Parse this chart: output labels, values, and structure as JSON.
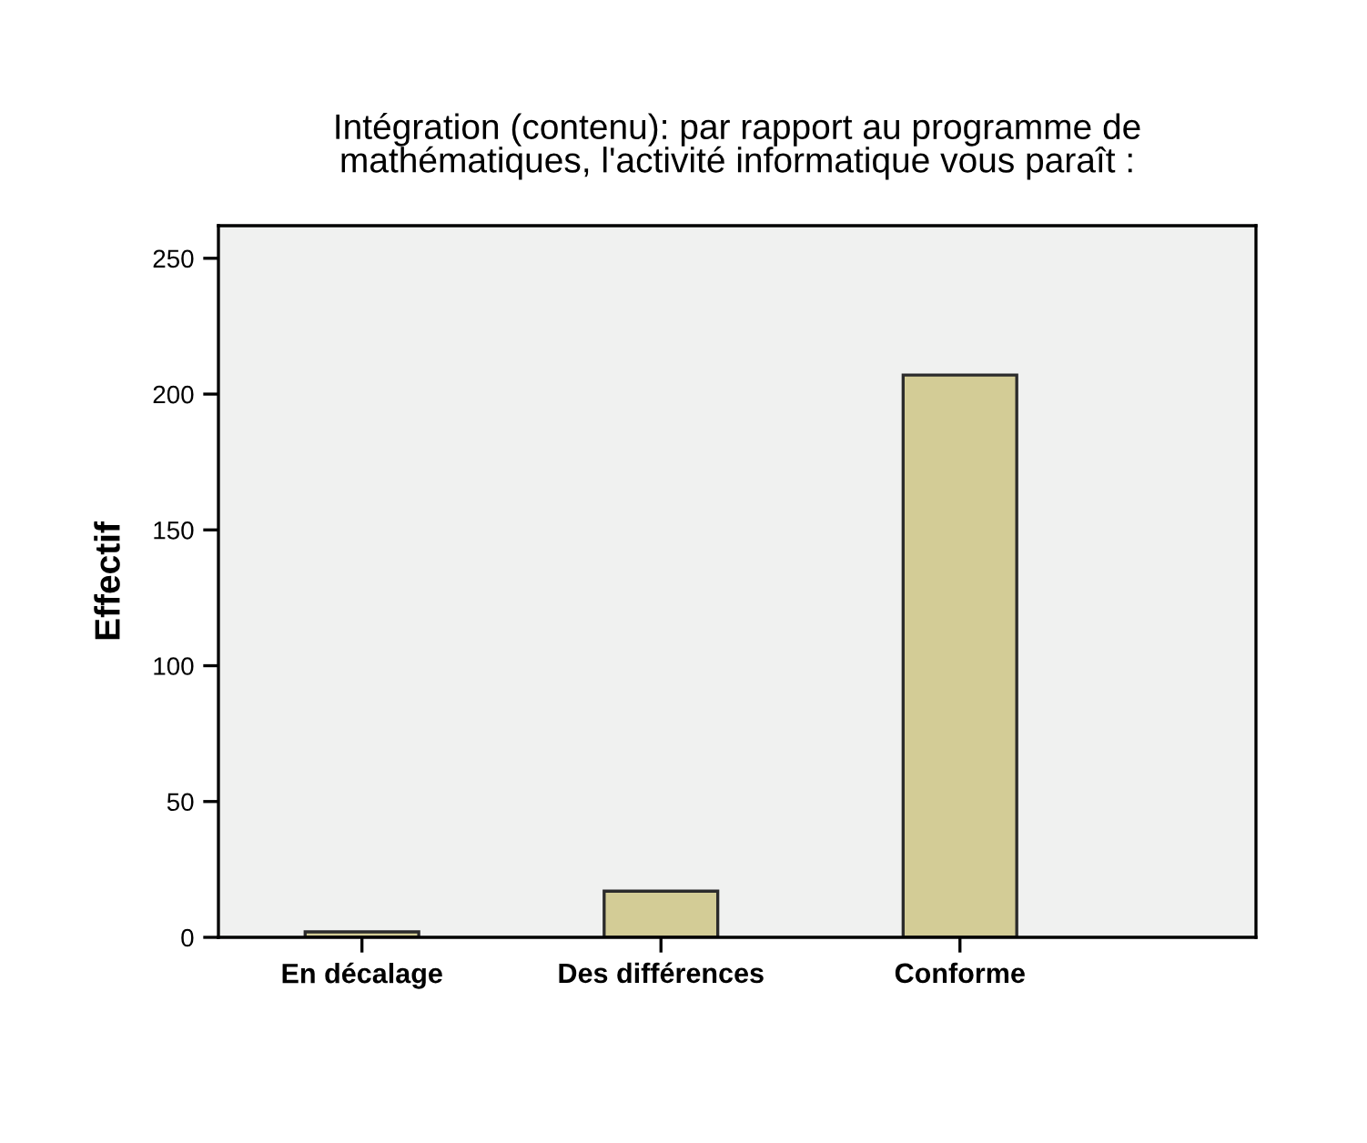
{
  "chart_data": {
    "type": "bar",
    "title": "Intégration (contenu): par rapport au programme de\nmathématiques, l'activité informatique vous paraît :",
    "ylabel": "Effectif",
    "categories": [
      "En décalage",
      "Des différences",
      "Conforme"
    ],
    "values": [
      2,
      17,
      207
    ],
    "color": "#d3cc96",
    "ylim": [
      0,
      262
    ],
    "yticks": [
      0,
      50,
      100,
      150,
      200,
      250
    ],
    "grid": false,
    "legend": false
  }
}
